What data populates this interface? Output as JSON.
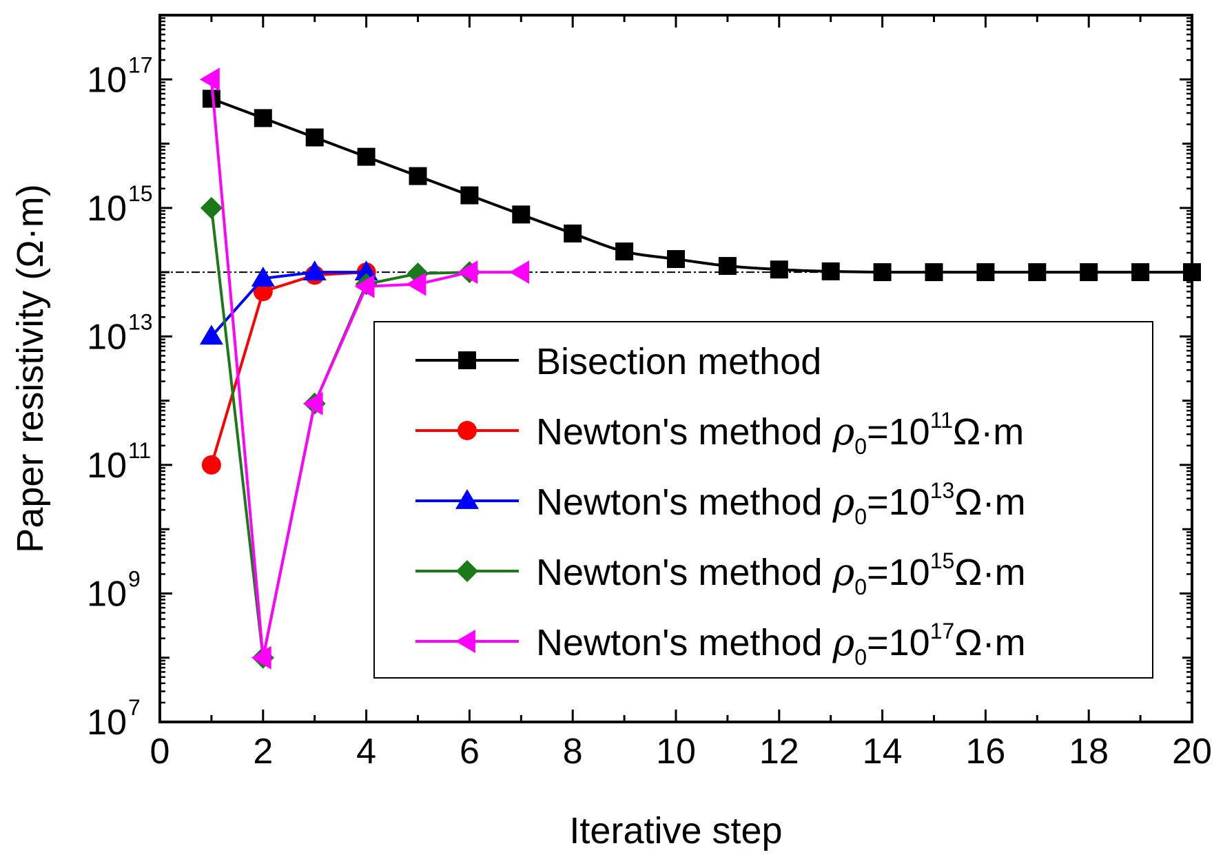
{
  "chart_data": {
    "type": "line",
    "title": "",
    "xlabel": "Iterative step",
    "ylabel": "Paper resistivity (Ω·m)",
    "xlim": [
      0,
      20
    ],
    "ylim": [
      10000000,
      1e+18
    ],
    "yscale": "log",
    "x_ticks": [
      0,
      2,
      4,
      6,
      8,
      10,
      12,
      14,
      16,
      18,
      20
    ],
    "x_tick_labels": [
      "0",
      "2",
      "4",
      "6",
      "8",
      "10",
      "12",
      "14",
      "16",
      "18",
      "20"
    ],
    "y_ticks": [
      10000000,
      1000000000,
      100000000000,
      10000000000000,
      1000000000000000,
      100000000000000000
    ],
    "y_tick_labels": [
      {
        "base": "10",
        "exp": "7"
      },
      {
        "base": "10",
        "exp": "9"
      },
      {
        "base": "10",
        "exp": "11"
      },
      {
        "base": "10",
        "exp": "13"
      },
      {
        "base": "10",
        "exp": "15"
      },
      {
        "base": "10",
        "exp": "17"
      }
    ],
    "reference_line": {
      "y": 100000000000000,
      "style": "dash-dot"
    },
    "legend": {
      "position": "center-right"
    },
    "series": [
      {
        "name": "Bisection method",
        "label": {
          "prefix": "Bisection method",
          "sub": "",
          "mid": "",
          "sup": "",
          "suffix": ""
        },
        "color": "#000000",
        "marker": "square",
        "smooth": true,
        "x": [
          1,
          2,
          3,
          4,
          5,
          6,
          7,
          8,
          9,
          10,
          11,
          12,
          13,
          14,
          15,
          16,
          17,
          18,
          19,
          20
        ],
        "y": [
          5e+16,
          2.5e+16,
          1.25e+16,
          6250000000000000.0,
          3130000000000000.0,
          1570000000000000.0,
          790000000000000.0,
          400000000000000.0,
          210000000000000.0,
          160000000000000.0,
          125000000000000.0,
          110000000000000.0,
          103000000000000.0,
          100000000000000.0,
          100000000000000.0,
          100000000000000.0,
          100000000000000.0,
          100000000000000.0,
          100000000000000.0,
          100000000000000.0
        ]
      },
      {
        "name": "Newton's method ρ0=10^11 Ω·m",
        "label": {
          "prefix": "Newton's method ",
          "sub": "0",
          "mid": "=10",
          "sup": "11",
          "suffix": "Ω·m"
        },
        "color": "#ff0000",
        "marker": "circle",
        "smooth": false,
        "x": [
          1,
          2,
          3,
          4
        ],
        "y": [
          100000000000,
          50000000000000,
          90000000000000,
          100000000000000
        ]
      },
      {
        "name": "Newton's method ρ0=10^13 Ω·m",
        "label": {
          "prefix": "Newton's method ",
          "sub": "0",
          "mid": "=10",
          "sup": "13",
          "suffix": "Ω·m"
        },
        "color": "#0000ff",
        "marker": "triangle-up",
        "smooth": false,
        "x": [
          1,
          2,
          3,
          4
        ],
        "y": [
          10000000000000,
          80000000000000,
          100000000000000,
          100000000000000
        ]
      },
      {
        "name": "Newton's method ρ0=10^15 Ω·m",
        "label": {
          "prefix": "Newton's method ",
          "sub": "0",
          "mid": "=10",
          "sup": "15",
          "suffix": "Ω·m"
        },
        "color": "#1a7a1a",
        "marker": "diamond",
        "smooth": false,
        "x": [
          1,
          2,
          3,
          4,
          5,
          6
        ],
        "y": [
          1000000000000000,
          100000000,
          900000000000,
          65000000000000,
          95000000000000,
          100000000000000
        ]
      },
      {
        "name": "Newton's method ρ0=10^17 Ω·m",
        "label": {
          "prefix": "Newton's method ",
          "sub": "0",
          "mid": "=10",
          "sup": "17",
          "suffix": "Ω·m"
        },
        "color": "#ff00ff",
        "marker": "triangle-left",
        "smooth": false,
        "x": [
          1,
          2,
          3,
          4,
          5,
          6,
          7
        ],
        "y": [
          1e+17,
          100000000,
          900000000000,
          60000000000000,
          65000000000000,
          100000000000000,
          100000000000000
        ]
      }
    ]
  }
}
